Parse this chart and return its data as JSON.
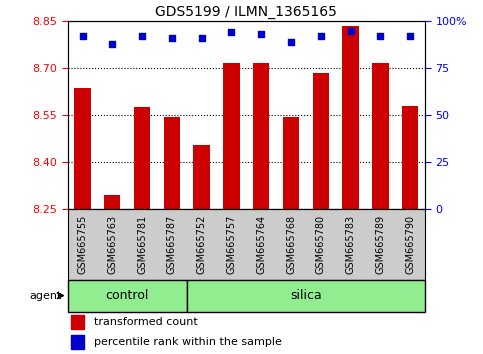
{
  "title": "GDS5199 / ILMN_1365165",
  "samples": [
    "GSM665755",
    "GSM665763",
    "GSM665781",
    "GSM665787",
    "GSM665752",
    "GSM665757",
    "GSM665764",
    "GSM665768",
    "GSM665780",
    "GSM665783",
    "GSM665789",
    "GSM665790"
  ],
  "bar_values": [
    8.635,
    8.295,
    8.575,
    8.545,
    8.455,
    8.715,
    8.715,
    8.545,
    8.685,
    8.835,
    8.715,
    8.58
  ],
  "percentile_values": [
    92,
    88,
    92,
    91,
    91,
    94,
    93,
    89,
    92,
    95,
    92,
    92
  ],
  "groups": [
    {
      "label": "control",
      "start": 0,
      "end": 3
    },
    {
      "label": "silica",
      "start": 4,
      "end": 11
    }
  ],
  "y_min": 8.25,
  "y_max": 8.85,
  "y_ticks": [
    8.25,
    8.4,
    8.55,
    8.7,
    8.85
  ],
  "right_y_ticks": [
    0,
    25,
    50,
    75,
    100
  ],
  "bar_color": "#CC0000",
  "percentile_color": "#0000CC",
  "group_color": "#90EE90",
  "xtick_bg_color": "#CCCCCC",
  "legend_bar_label": "transformed count",
  "legend_pct_label": "percentile rank within the sample",
  "agent_label": "agent",
  "figwidth": 4.83,
  "figheight": 3.54,
  "dpi": 100
}
